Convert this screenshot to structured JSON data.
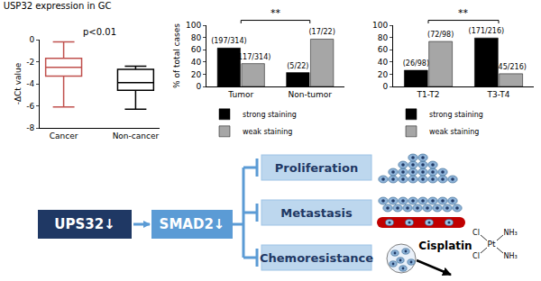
{
  "chart_data": [
    {
      "type": "box",
      "title": "USP32 expression in GC",
      "annotation": "p<0.01",
      "ylabel": "-ΔCt value",
      "categories": [
        "Cancer",
        "Non-cancer"
      ],
      "min": [
        -6.1,
        -6.3
      ],
      "q1": [
        -3.3,
        -4.6
      ],
      "median": [
        -2.5,
        -3.9
      ],
      "q3": [
        -1.7,
        -2.7
      ],
      "max": [
        -0.2,
        -2.4
      ],
      "colors": [
        "#c0504d",
        "#000000"
      ],
      "ylim": [
        -8,
        0
      ],
      "yticks": [
        -8,
        -6,
        -4,
        -2,
        0
      ],
      "grid": false
    },
    {
      "type": "bar",
      "ylabel": "% of total cases",
      "significance": "**",
      "categories": [
        "Tumor",
        "Non-tumor"
      ],
      "series": [
        {
          "name": "strong staining",
          "color": "#000000",
          "values": [
            62.7,
            22.7
          ],
          "value_labels": [
            "(197/314)",
            "(5/22)"
          ]
        },
        {
          "name": "weak staining",
          "color": "#a6a6a6",
          "values": [
            37.3,
            77.3
          ],
          "value_labels": [
            "(117/314)",
            "(17/22)"
          ]
        }
      ],
      "ylim": [
        0,
        100
      ],
      "yticks": [
        0,
        20,
        40,
        60,
        80,
        100
      ],
      "grid": false,
      "data_labels": true,
      "legend": "bottom"
    },
    {
      "type": "bar",
      "significance": "**",
      "categories": [
        "T1-T2",
        "T3-T4"
      ],
      "series": [
        {
          "name": "strong staining",
          "color": "#000000",
          "values": [
            26.5,
            79.2
          ],
          "value_labels": [
            "(26/98)",
            "(171/216)"
          ]
        },
        {
          "name": "weak staining",
          "color": "#a6a6a6",
          "values": [
            73.5,
            20.8
          ],
          "value_labels": [
            "(72/98)",
            "(45/216)"
          ]
        }
      ],
      "ylim": [
        0,
        100
      ],
      "yticks": [
        0,
        20,
        40,
        60,
        80,
        100
      ],
      "grid": false,
      "data_labels": true,
      "legend": "bottom"
    }
  ],
  "diagram": {
    "from": {
      "label": "UPS32↓",
      "color": "#1f3864"
    },
    "via": {
      "label": "SMAD2↓",
      "color": "#5b9bd5"
    },
    "targets": [
      {
        "label": "Proliferation"
      },
      {
        "label": "Metastasis"
      },
      {
        "label": "Chemoresistance"
      }
    ],
    "drug": {
      "label": "Cisplatin",
      "atoms": [
        "Cl",
        "Cl",
        "Pt",
        "NH₃",
        "NH₃"
      ]
    }
  }
}
